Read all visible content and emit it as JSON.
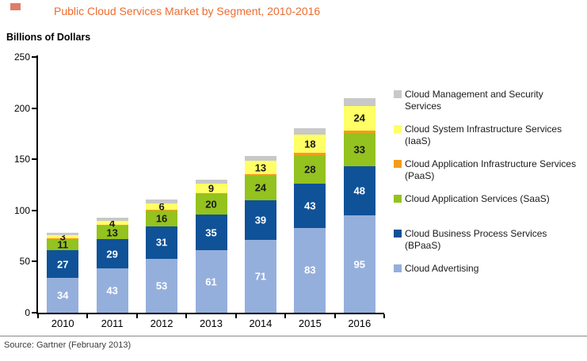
{
  "header": {
    "title": "Public Cloud Services Market by Segment, 2010-2016",
    "title_color": "#ED6C30",
    "marker_color": "#DD7E6B"
  },
  "chart_data": {
    "type": "bar",
    "variant": "stacked-column",
    "title": "Public Cloud Services Market by Segment, 2010-2016",
    "ylabel": "Billions of Dollars",
    "ylim": [
      0,
      250
    ],
    "yticks": [
      0,
      50,
      100,
      150,
      200,
      250
    ],
    "grid": false,
    "legend_position": "right",
    "categories": [
      "2010",
      "2011",
      "2012",
      "2013",
      "2014",
      "2015",
      "2016"
    ],
    "series": [
      {
        "name": "Cloud Advertising",
        "color": "#95AFDC",
        "label_color": "#FFFFFF",
        "labeled": true,
        "values": [
          34,
          43,
          53,
          61,
          71,
          83,
          95
        ]
      },
      {
        "name": "Cloud Business Process Services (BPaaS)",
        "color": "#0F5298",
        "label_color": "#FFFFFF",
        "labeled": true,
        "values": [
          27,
          29,
          31,
          35,
          39,
          43,
          48
        ]
      },
      {
        "name": "Cloud Application Services (SaaS)",
        "color": "#94C21E",
        "label_color": "#1A1A1A",
        "labeled": true,
        "values": [
          11,
          13,
          16,
          20,
          24,
          28,
          33
        ]
      },
      {
        "name": "Cloud Application Infrastructure Services (PaaS)",
        "color": "#F59B1C",
        "label_color": "#1A1A1A",
        "labeled": false,
        "values": [
          0.5,
          0.8,
          1,
          1.2,
          1.5,
          2,
          2.2
        ]
      },
      {
        "name": "Cloud System Infrastructure Services (IaaS)",
        "color": "#FFFF66",
        "label_color": "#1A1A1A",
        "labeled": true,
        "values": [
          3,
          4,
          6,
          9,
          13,
          18,
          24
        ]
      },
      {
        "name": "Cloud Management and Security Services",
        "color": "#C8C8C8",
        "label_color": "#1A1A1A",
        "labeled": false,
        "values": [
          2.5,
          3,
          3.5,
          4,
          5,
          6,
          7.5
        ]
      }
    ],
    "legend": [
      {
        "label": "Cloud Management and Security Services",
        "color": "#C8C8C8"
      },
      {
        "label": "Cloud System Infrastructure Services (IaaS)",
        "color": "#FFFF66"
      },
      {
        "label": "Cloud Application Infrastructure Services (PaaS)",
        "color": "#F59B1C"
      },
      {
        "label": "Cloud Application Services (SaaS)",
        "color": "#94C21E"
      },
      {
        "label": "Cloud Business Process Services (BPaaS)",
        "color": "#0F5298"
      },
      {
        "label": "Cloud Advertising",
        "color": "#95AFDC"
      }
    ]
  },
  "footer": {
    "source": "Source: Gartner (February 2013)"
  }
}
